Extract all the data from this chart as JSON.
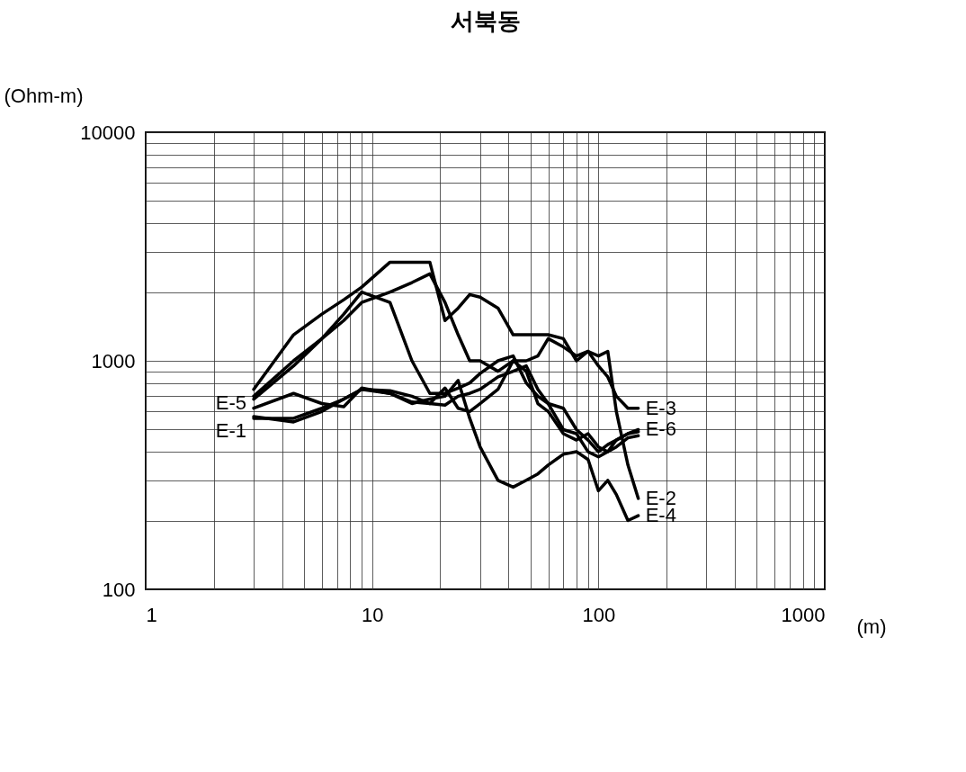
{
  "chart_data": {
    "type": "line",
    "title": "서북동",
    "ylabel": "(Ohm-m)",
    "xlabel": "(m)",
    "log": "xy",
    "grid": true,
    "legend": false,
    "xlim": [
      1,
      1000
    ],
    "ylim": [
      100,
      10000
    ],
    "xticks": [
      1,
      {
        "value": 2,
        "label": null
      },
      {
        "value": 3,
        "label": null
      },
      {
        "value": 4,
        "label": null
      },
      {
        "value": 5,
        "label": null
      },
      {
        "value": 6,
        "label": null
      },
      {
        "value": 7,
        "label": null
      },
      {
        "value": 8,
        "label": null
      },
      {
        "value": 9,
        "label": null
      },
      10,
      {
        "value": 20,
        "label": null
      },
      {
        "value": 30,
        "label": null
      },
      {
        "value": 40,
        "label": null
      },
      {
        "value": 50,
        "label": null
      },
      {
        "value": 60,
        "label": null
      },
      {
        "value": 70,
        "label": null
      },
      {
        "value": 80,
        "label": null
      },
      {
        "value": 90,
        "label": null
      },
      100,
      {
        "value": 200,
        "label": null
      },
      {
        "value": 300,
        "label": null
      },
      {
        "value": 400,
        "label": null
      },
      {
        "value": 500,
        "label": null
      },
      {
        "value": 600,
        "label": null
      },
      {
        "value": 700,
        "label": null
      },
      {
        "value": 800,
        "label": null
      },
      {
        "value": 900,
        "label": null
      },
      1000
    ],
    "yticks": [
      100,
      {
        "value": 200,
        "label": null
      },
      {
        "value": 300,
        "label": null
      },
      {
        "value": 400,
        "label": null
      },
      {
        "value": 500,
        "label": null
      },
      {
        "value": 600,
        "label": null
      },
      {
        "value": 700,
        "label": null
      },
      {
        "value": 800,
        "label": null
      },
      {
        "value": 900,
        "label": null
      },
      1000,
      {
        "value": 2000,
        "label": null
      },
      {
        "value": 3000,
        "label": null
      },
      {
        "value": 4000,
        "label": null
      },
      {
        "value": 5000,
        "label": null
      },
      {
        "value": 6000,
        "label": null
      },
      {
        "value": 7000,
        "label": null
      },
      {
        "value": 8000,
        "label": null
      },
      {
        "value": 9000,
        "label": null
      },
      10000
    ],
    "x": [
      3,
      4.5,
      6,
      7.5,
      9,
      12,
      15,
      18,
      21,
      24,
      27,
      30,
      36,
      42,
      48,
      54,
      60,
      70,
      80,
      90,
      100,
      110,
      120,
      135,
      150
    ],
    "series": [
      {
        "name": "E-3",
        "color": "#000000",
        "values": [
          750,
          1300,
          1600,
          1850,
          2100,
          2700,
          2700,
          2700,
          1500,
          1700,
          1950,
          1900,
          1700,
          1300,
          1300,
          1300,
          1300,
          1250,
          1000,
          1100,
          950,
          850,
          700,
          620,
          620
        ]
      },
      {
        "name": "E-6",
        "color": "#000000",
        "values": [
          680,
          950,
          1250,
          1600,
          2000,
          1800,
          1000,
          720,
          720,
          760,
          800,
          880,
          1000,
          1050,
          800,
          700,
          650,
          500,
          480,
          400,
          380,
          400,
          450,
          480,
          500
        ]
      },
      {
        "name": "E-2",
        "color": "#000000",
        "values": [
          700,
          1000,
          1250,
          1500,
          1800,
          2000,
          2200,
          2400,
          1800,
          1300,
          1000,
          1000,
          900,
          1000,
          1000,
          1050,
          1250,
          1150,
          1050,
          1100,
          1050,
          1100,
          600,
          350,
          250
        ]
      },
      {
        "name": "E-4",
        "color": "#000000",
        "values": [
          560,
          560,
          620,
          680,
          750,
          720,
          650,
          680,
          700,
          820,
          560,
          420,
          300,
          280,
          300,
          320,
          350,
          390,
          400,
          370,
          270,
          300,
          260,
          200,
          210
        ]
      },
      {
        "name": "E-5",
        "color": "#000000",
        "values": [
          620,
          720,
          650,
          630,
          760,
          720,
          660,
          650,
          760,
          620,
          600,
          650,
          750,
          1000,
          900,
          650,
          600,
          480,
          450,
          480,
          420,
          400,
          420,
          460,
          470
        ]
      },
      {
        "name": "E-1",
        "color": "#000000",
        "values": [
          570,
          540,
          600,
          680,
          750,
          740,
          700,
          650,
          640,
          700,
          720,
          750,
          850,
          900,
          950,
          750,
          650,
          620,
          500,
          450,
          400,
          430,
          450,
          480,
          490
        ]
      }
    ]
  }
}
